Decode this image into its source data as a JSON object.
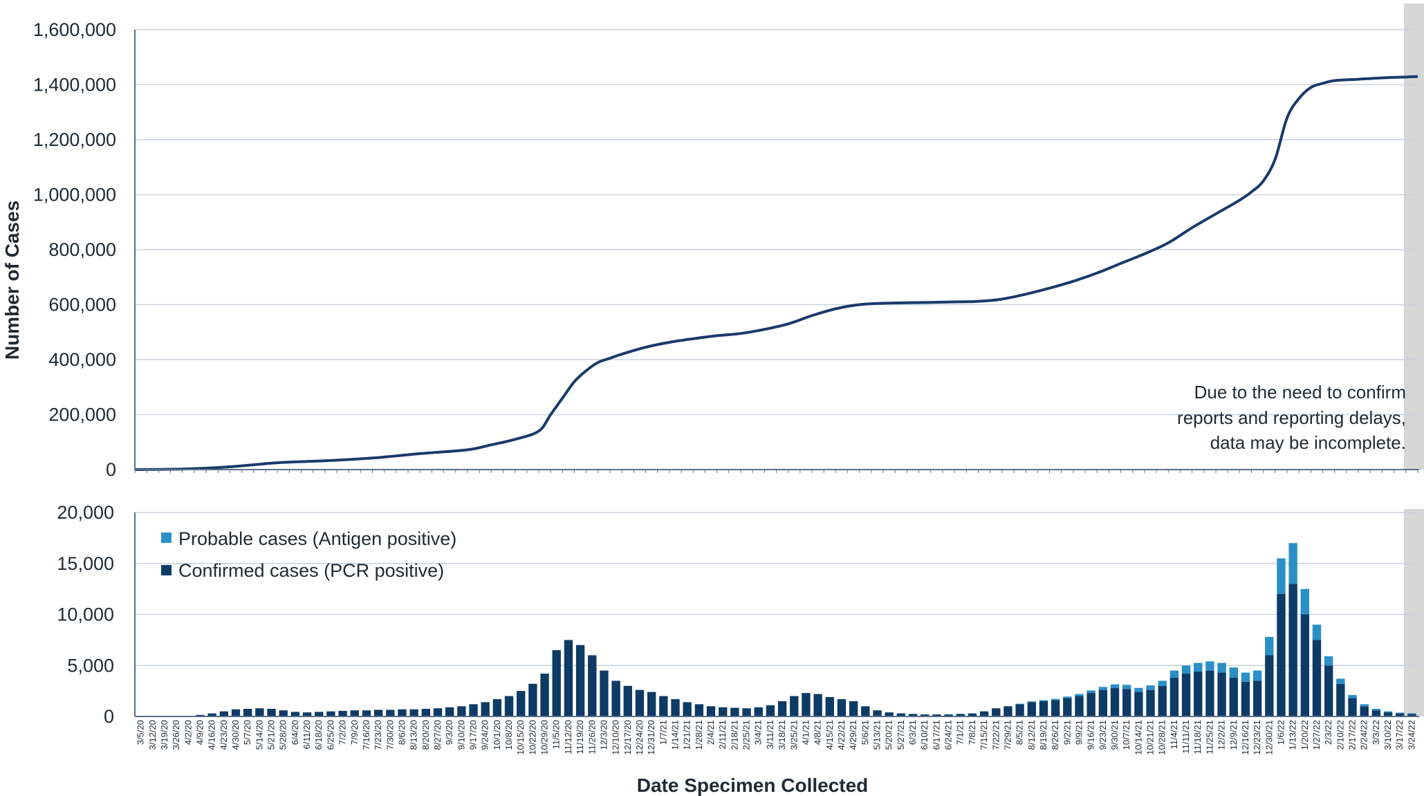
{
  "colors": {
    "cumulative_line": "#1a3a6b",
    "confirmed": "#0e3a66",
    "probable": "#2b8fc7",
    "axis": "#5a6f8a",
    "grid": "#c9d2dd",
    "incomplete_band": "#d6d6d6"
  },
  "axis_titles": {
    "y": "Number of Cases",
    "x": "Date Specimen Collected"
  },
  "note_lines": [
    "Due to the need to confirm",
    "reports and reporting delays,",
    "data may be incomplete."
  ],
  "chart_data": [
    {
      "type": "line",
      "title": "",
      "ylabel": "Number of Cases",
      "ylim": [
        0,
        1600000
      ],
      "yticks": [
        0,
        200000,
        400000,
        600000,
        800000,
        1000000,
        1200000,
        1400000,
        1600000
      ],
      "ytick_labels": [
        "0",
        "200,000",
        "400,000",
        "600,000",
        "800,000",
        "1,000,000",
        "1,200,000",
        "1,400,000",
        "1,600,000"
      ],
      "grid": true,
      "x": [
        "2020-03-05",
        "2020-04-02",
        "2020-04-30",
        "2020-05-28",
        "2020-06-25",
        "2020-07-23",
        "2020-08-20",
        "2020-09-17",
        "2020-10-01",
        "2020-10-15",
        "2020-10-29",
        "2020-11-05",
        "2020-11-12",
        "2020-11-19",
        "2020-11-26",
        "2020-12-03",
        "2020-12-10",
        "2020-12-17",
        "2020-12-31",
        "2021-01-14",
        "2021-01-28",
        "2021-02-11",
        "2021-02-25",
        "2021-03-11",
        "2021-03-25",
        "2021-04-08",
        "2021-04-22",
        "2021-05-06",
        "2021-05-20",
        "2021-06-03",
        "2021-06-17",
        "2021-07-01",
        "2021-07-15",
        "2021-07-29",
        "2021-08-12",
        "2021-08-26",
        "2021-09-09",
        "2021-09-23",
        "2021-10-07",
        "2021-10-21",
        "2021-11-04",
        "2021-11-18",
        "2021-12-02",
        "2021-12-16",
        "2021-12-23",
        "2021-12-30",
        "2022-01-06",
        "2022-01-13",
        "2022-01-20",
        "2022-01-27",
        "2022-02-03",
        "2022-02-10",
        "2022-02-24",
        "2022-03-10",
        "2022-03-24",
        "2022-03-31"
      ],
      "y": [
        0,
        2000,
        10000,
        25000,
        32000,
        42000,
        58000,
        72000,
        90000,
        110000,
        140000,
        200000,
        260000,
        320000,
        360000,
        390000,
        405000,
        420000,
        445000,
        463000,
        476000,
        487000,
        495000,
        510000,
        530000,
        560000,
        585000,
        600000,
        605000,
        607000,
        608000,
        610000,
        612000,
        620000,
        638000,
        660000,
        685000,
        715000,
        750000,
        785000,
        825000,
        880000,
        930000,
        980000,
        1010000,
        1050000,
        1130000,
        1280000,
        1350000,
        1390000,
        1405000,
        1415000,
        1420000,
        1425000,
        1428000,
        1430000
      ]
    },
    {
      "type": "bar",
      "title": "",
      "xlabel": "Date Specimen Collected",
      "ylim": [
        0,
        20000
      ],
      "yticks": [
        0,
        5000,
        10000,
        15000,
        20000
      ],
      "ytick_labels": [
        "0",
        "5,000",
        "10,000",
        "15,000",
        "20,000"
      ],
      "stacked": true,
      "legend_position": "top-left",
      "x_tick_labels": [
        "3/5/20",
        "3/12/20",
        "3/19/20",
        "3/26/20",
        "4/2/20",
        "4/9/20",
        "4/16/20",
        "4/23/20",
        "4/30/20",
        "5/7/20",
        "5/14/20",
        "5/21/20",
        "5/28/20",
        "6/4/20",
        "6/11/20",
        "6/18/20",
        "6/25/20",
        "7/2/20",
        "7/9/20",
        "7/16/20",
        "7/23/20",
        "7/30/20",
        "8/6/20",
        "8/13/20",
        "8/20/20",
        "8/27/20",
        "9/3/20",
        "9/10/20",
        "9/17/20",
        "9/24/20",
        "10/1/20",
        "10/8/20",
        "10/15/20",
        "10/22/20",
        "10/29/20",
        "11/5/20",
        "11/12/20",
        "11/19/20",
        "11/26/20",
        "12/3/20",
        "12/10/20",
        "12/17/20",
        "12/24/20",
        "12/31/20",
        "1/7/21",
        "1/14/21",
        "1/21/21",
        "1/28/21",
        "2/4/21",
        "2/11/21",
        "2/18/21",
        "2/25/21",
        "3/4/21",
        "3/11/21",
        "3/18/21",
        "3/25/21",
        "4/1/21",
        "4/8/21",
        "4/15/21",
        "4/22/21",
        "4/29/21",
        "5/6/21",
        "5/13/21",
        "5/20/21",
        "5/27/21",
        "6/3/21",
        "6/10/21",
        "6/17/21",
        "6/24/21",
        "7/1/21",
        "7/8/21",
        "7/15/21",
        "7/22/21",
        "7/29/21",
        "8/5/21",
        "8/12/21",
        "8/19/21",
        "8/26/21",
        "9/2/21",
        "9/9/21",
        "9/16/21",
        "9/23/21",
        "9/30/21",
        "10/7/21",
        "10/14/21",
        "10/21/21",
        "10/28/21",
        "11/4/21",
        "11/11/21",
        "11/18/21",
        "11/25/21",
        "12/2/21",
        "12/9/21",
        "12/16/21",
        "12/23/21",
        "12/30/21",
        "1/6/22",
        "1/13/22",
        "1/20/22",
        "1/27/22",
        "2/3/22",
        "2/10/22",
        "2/17/22",
        "2/24/22",
        "3/3/22",
        "3/10/22",
        "3/17/22",
        "3/24/22"
      ],
      "series": [
        {
          "name": "Probable cases (Antigen positive)",
          "values": [
            0,
            0,
            0,
            0,
            0,
            0,
            0,
            0,
            0,
            0,
            0,
            0,
            0,
            0,
            0,
            0,
            0,
            0,
            0,
            0,
            0,
            0,
            0,
            0,
            0,
            0,
            0,
            0,
            0,
            0,
            0,
            0,
            0,
            0,
            0,
            0,
            0,
            0,
            0,
            0,
            0,
            0,
            0,
            0,
            0,
            0,
            0,
            0,
            0,
            0,
            0,
            0,
            0,
            0,
            0,
            0,
            0,
            0,
            0,
            0,
            0,
            0,
            0,
            0,
            0,
            0,
            0,
            0,
            0,
            0,
            0,
            0,
            0,
            0,
            50,
            80,
            100,
            120,
            150,
            200,
            250,
            300,
            350,
            400,
            400,
            450,
            500,
            700,
            800,
            850,
            900,
            950,
            1000,
            900,
            1000,
            1800,
            3500,
            4000,
            2500,
            1500,
            900,
            500,
            300,
            200,
            150,
            100,
            80,
            60
          ]
        },
        {
          "name": "Confirmed cases (PCR positive)",
          "values": [
            0,
            10,
            20,
            30,
            60,
            150,
            300,
            500,
            700,
            750,
            800,
            750,
            600,
            450,
            400,
            450,
            500,
            550,
            600,
            600,
            650,
            650,
            700,
            700,
            750,
            800,
            900,
            1000,
            1200,
            1400,
            1700,
            2000,
            2500,
            3200,
            4200,
            6500,
            7500,
            7000,
            6000,
            4500,
            3500,
            3000,
            2600,
            2400,
            2000,
            1700,
            1400,
            1200,
            1000,
            900,
            850,
            800,
            900,
            1100,
            1500,
            2000,
            2300,
            2200,
            1900,
            1700,
            1500,
            1000,
            600,
            400,
            300,
            250,
            200,
            200,
            200,
            250,
            300,
            500,
            800,
            1000,
            1200,
            1400,
            1500,
            1600,
            1800,
            2000,
            2300,
            2600,
            2800,
            2700,
            2400,
            2600,
            3000,
            3800,
            4200,
            4400,
            4500,
            4300,
            3800,
            3400,
            3500,
            6000,
            12000,
            13000,
            10000,
            7500,
            5000,
            3200,
            1800,
            1000,
            600,
            400,
            300,
            250
          ]
        }
      ]
    }
  ]
}
